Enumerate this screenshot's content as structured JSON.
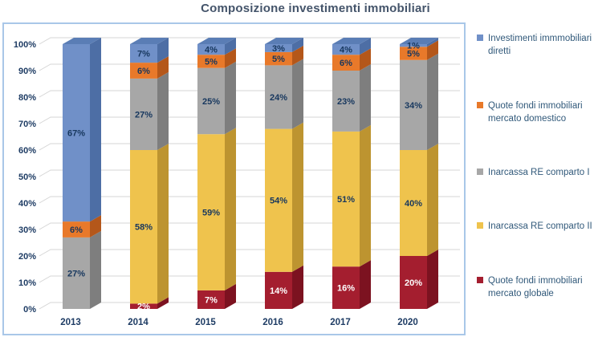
{
  "title": "Composizione investimenti immobiliari",
  "style": {
    "title_color": "#44546A",
    "plot_border_color": "#A9C7E8",
    "grid_color": "#D6D6D6",
    "axis_text_color": "#1E3C64",
    "legend_text_color": "#31597A",
    "segment_label_dark": "#17375E",
    "segment_label_light": "#FFFFFF"
  },
  "chart_data": {
    "type": "bar",
    "stacked": true,
    "title": "Composizione investimenti immobiliari",
    "categories": [
      "2013",
      "2014",
      "2015",
      "2016",
      "2017",
      "2020"
    ],
    "series": [
      {
        "name": "Quote fondi immobiliari mercato globale",
        "color": "#A41E2F",
        "side_color": "#7C1220",
        "top_color": "#8D1827",
        "label_color": "#FFFFFF",
        "values": [
          0,
          2,
          7,
          14,
          16,
          20
        ]
      },
      {
        "name": "Inarcassa RE comparto II",
        "color": "#EFC34D",
        "side_color": "#BD9430",
        "top_color": "#D2A93C",
        "label_color": "#17375E",
        "values": [
          0,
          58,
          59,
          54,
          51,
          40
        ]
      },
      {
        "name": "Inarcassa RE comparto I",
        "color": "#A7A7A7",
        "side_color": "#7E7E7E",
        "top_color": "#8F8F8F",
        "label_color": "#17375E",
        "values": [
          27,
          27,
          25,
          24,
          23,
          34
        ]
      },
      {
        "name": "Quote fondi immobiliari mercato domestico",
        "color": "#E8792A",
        "side_color": "#B4571A",
        "top_color": "#C96520",
        "label_color": "#17375E",
        "values": [
          6,
          6,
          5,
          5,
          6,
          5
        ]
      },
      {
        "name": "Investimenti immmobiliari diretti",
        "color": "#7090C8",
        "side_color": "#4D6EA5",
        "top_color": "#5A7DB5",
        "label_color": "#17375E",
        "values": [
          67,
          7,
          4,
          3,
          4,
          1
        ]
      }
    ],
    "value_suffix": "%",
    "y_ticks": [
      "0%",
      "10%",
      "20%",
      "30%",
      "40%",
      "50%",
      "60%",
      "70%",
      "80%",
      "90%",
      "100%"
    ],
    "ylim": [
      0,
      100
    ],
    "grid": true,
    "effect": "3d",
    "legend_position": "right"
  },
  "legend": [
    {
      "label": "Investimenti immmobiliari diretti",
      "color": "#7090C8"
    },
    {
      "label": "Quote fondi immobiliari mercato domestico",
      "color": "#E8792A"
    },
    {
      "label": "Inarcassa RE comparto I",
      "color": "#A7A7A7"
    },
    {
      "label": "Inarcassa RE comparto II",
      "color": "#EFC34D"
    },
    {
      "label": "Quote fondi immobiliari mercato globale",
      "color": "#A41E2F"
    }
  ]
}
